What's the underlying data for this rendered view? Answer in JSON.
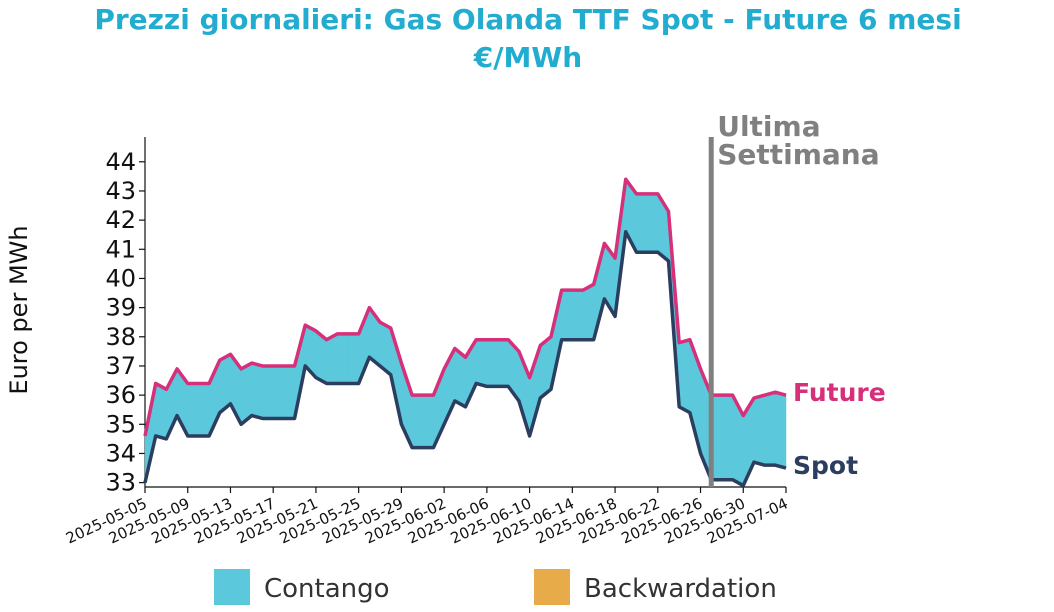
{
  "chart_data": {
    "type": "line-band",
    "title": [
      "Prezzi giornalieri: Gas Olanda TTF Spot - Future 6 mesi",
      "€/MWh"
    ],
    "y_label": "Euro per MWh",
    "x": [
      "2025-05-05",
      "2025-05-06",
      "2025-05-07",
      "2025-05-08",
      "2025-05-09",
      "2025-05-10",
      "2025-05-11",
      "2025-05-12",
      "2025-05-13",
      "2025-05-14",
      "2025-05-15",
      "2025-05-16",
      "2025-05-17",
      "2025-05-18",
      "2025-05-19",
      "2025-05-20",
      "2025-05-21",
      "2025-05-22",
      "2025-05-23",
      "2025-05-24",
      "2025-05-25",
      "2025-05-26",
      "2025-05-27",
      "2025-05-28",
      "2025-05-29",
      "2025-05-30",
      "2025-05-31",
      "2025-06-01",
      "2025-06-02",
      "2025-06-03",
      "2025-06-04",
      "2025-06-05",
      "2025-06-06",
      "2025-06-07",
      "2025-06-08",
      "2025-06-09",
      "2025-06-10",
      "2025-06-11",
      "2025-06-12",
      "2025-06-13",
      "2025-06-14",
      "2025-06-15",
      "2025-06-16",
      "2025-06-17",
      "2025-06-18",
      "2025-06-19",
      "2025-06-20",
      "2025-06-21",
      "2025-06-22",
      "2025-06-23",
      "2025-06-24",
      "2025-06-25",
      "2025-06-26",
      "2025-06-27",
      "2025-06-28",
      "2025-06-29",
      "2025-06-30",
      "2025-07-01",
      "2025-07-02",
      "2025-07-03",
      "2025-07-04"
    ],
    "series": [
      {
        "name": "Spot",
        "color": "#2c3e5f",
        "values": [
          33.0,
          34.6,
          34.5,
          35.3,
          34.6,
          34.6,
          34.6,
          35.4,
          35.7,
          35.0,
          35.3,
          35.2,
          35.2,
          35.2,
          35.2,
          37.0,
          36.6,
          36.4,
          36.4,
          36.4,
          36.4,
          37.3,
          37.0,
          36.7,
          35.0,
          34.2,
          34.2,
          34.2,
          35.0,
          35.8,
          35.6,
          36.4,
          36.3,
          36.3,
          36.3,
          35.8,
          34.6,
          35.9,
          36.2,
          37.9,
          37.9,
          37.9,
          37.9,
          39.3,
          38.7,
          41.6,
          40.9,
          40.9,
          40.9,
          40.6,
          35.6,
          35.4,
          34.0,
          33.1,
          33.1,
          33.1,
          32.9,
          33.7,
          33.6,
          33.6,
          33.5
        ]
      },
      {
        "name": "Future",
        "color": "#d6307a",
        "values": [
          34.6,
          36.4,
          36.2,
          36.9,
          36.4,
          36.4,
          36.4,
          37.2,
          37.4,
          36.9,
          37.1,
          37.0,
          37.0,
          37.0,
          37.0,
          38.4,
          38.2,
          37.9,
          38.1,
          38.1,
          38.1,
          39.0,
          38.5,
          38.3,
          37.1,
          36.0,
          36.0,
          36.0,
          36.9,
          37.6,
          37.3,
          37.9,
          37.9,
          37.9,
          37.9,
          37.5,
          36.6,
          37.7,
          38.0,
          39.6,
          39.6,
          39.6,
          39.8,
          41.2,
          40.7,
          43.4,
          42.9,
          42.9,
          42.9,
          42.3,
          37.8,
          37.9,
          36.9,
          36.0,
          36.0,
          36.0,
          35.3,
          35.9,
          36.0,
          36.1,
          36.0
        ]
      }
    ],
    "legend": [
      {
        "label": "Contango",
        "color": "#5bc8dc"
      },
      {
        "label": "Backwardation",
        "color": "#e8ab4a"
      }
    ],
    "xlim": [
      "2025-05-05",
      "2025-07-04"
    ],
    "xticks": [
      "2025-05-05",
      "2025-05-09",
      "2025-05-13",
      "2025-05-17",
      "2025-05-21",
      "2025-05-25",
      "2025-05-29",
      "2025-06-02",
      "2025-06-06",
      "2025-06-10",
      "2025-06-14",
      "2025-06-18",
      "2025-06-22",
      "2025-06-26",
      "2025-06-30",
      "2025-07-04"
    ],
    "ylim": [
      32.85,
      44.85
    ],
    "yticks": [
      33,
      34,
      35,
      36,
      37,
      38,
      39,
      40,
      41,
      42,
      43,
      44
    ],
    "annotation": {
      "x": "2025-06-27",
      "text": [
        "Ultima",
        "Settimana"
      ],
      "color": "#808080"
    }
  }
}
